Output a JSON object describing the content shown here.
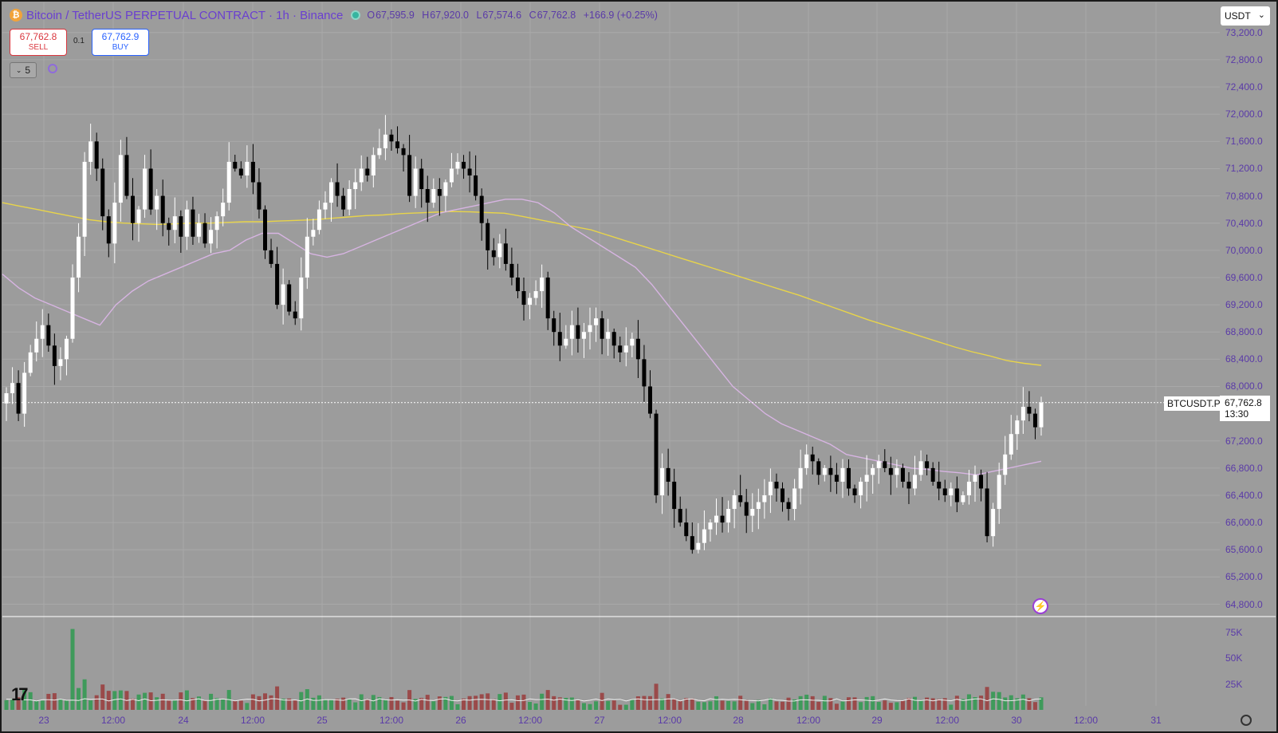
{
  "header": {
    "coin_glyph": "₿",
    "symbol_title": "Bitcoin / TetherUS PERPETUAL CONTRACT · 1h · Binance",
    "ohlc": [
      {
        "label": "O",
        "value": "67,595.9"
      },
      {
        "label": "H",
        "value": "67,920.0"
      },
      {
        "label": "L",
        "value": "67,574.6"
      },
      {
        "label": "C",
        "value": "67,762.8"
      }
    ],
    "change": "+166.9 (+0.25%)"
  },
  "trade": {
    "sell_price": "67,762.8",
    "sell_label": "SELL",
    "spread": "0.1",
    "buy_price": "67,762.9",
    "buy_label": "BUY"
  },
  "indicators_toggle": {
    "count": "5"
  },
  "currency_select": {
    "value": "USDT"
  },
  "price_axis": {
    "labels": [
      "73,200.0",
      "72,800.0",
      "72,400.0",
      "72,000.0",
      "71,600.0",
      "71,200.0",
      "70,800.0",
      "70,400.0",
      "70,000.0",
      "69,600.0",
      "69,200.0",
      "68,800.0",
      "68,400.0",
      "68,000.0",
      "67,200.0",
      "66,800.0",
      "66,400.0",
      "66,000.0",
      "65,600.0",
      "65,200.0",
      "64,800.0"
    ],
    "values": [
      73200,
      72800,
      72400,
      72000,
      71600,
      71200,
      70800,
      70400,
      70000,
      69600,
      69200,
      68800,
      68400,
      68000,
      67200,
      66800,
      66400,
      66000,
      65600,
      65200,
      64800
    ]
  },
  "volume_axis": {
    "labels": [
      "75K",
      "50K",
      "25K"
    ],
    "values": [
      75000,
      50000,
      25000
    ]
  },
  "time_axis": {
    "labels": [
      "23",
      "12:00",
      "24",
      "12:00",
      "25",
      "12:00",
      "26",
      "12:00",
      "27",
      "12:00",
      "28",
      "12:00",
      "29",
      "12:00",
      "30",
      "12:00",
      "31"
    ]
  },
  "last_price": {
    "symbol": "BTCUSDT.P",
    "price": "67,762.8",
    "countdown": "13:30"
  },
  "colors": {
    "up": "#ffffff",
    "down": "#000000",
    "vol_up": "#3f9a5b",
    "vol_down": "#9a4a4a",
    "ma_slow": "#e8d44a",
    "ma_fast": "#d7b4e2"
  },
  "chart_data": {
    "type": "candlestick",
    "interval": "1h",
    "ylim": [
      64600,
      73400
    ],
    "close_series": [
      67900,
      68050,
      67600,
      68200,
      68500,
      68700,
      68900,
      68600,
      68300,
      68400,
      68700,
      69600,
      70200,
      71300,
      71600,
      71200,
      70500,
      70100,
      70700,
      71400,
      70800,
      70400,
      70600,
      71200,
      70600,
      70800,
      70400,
      70300,
      70500,
      70200,
      70600,
      70200,
      70400,
      70100,
      70300,
      70500,
      70700,
      71300,
      71200,
      71100,
      71300,
      71000,
      70600,
      70000,
      69800,
      69200,
      69500,
      69100,
      69000,
      69600,
      70200,
      70300,
      70600,
      70700,
      71000,
      70800,
      70600,
      70900,
      71000,
      71200,
      71100,
      71400,
      71500,
      71700,
      71600,
      71500,
      71400,
      70800,
      71200,
      70900,
      70700,
      70900,
      70800,
      71000,
      71200,
      71300,
      71200,
      71100,
      70800,
      70400,
      70000,
      69900,
      70100,
      69800,
      69600,
      69400,
      69200,
      69300,
      69400,
      69600,
      69000,
      68800,
      68600,
      68700,
      68900,
      68700,
      68800,
      68900,
      69000,
      68700,
      68800,
      68600,
      68500,
      68600,
      68700,
      68400,
      68000,
      67600,
      66400,
      66800,
      66600,
      66200,
      66000,
      65800,
      65600,
      65700,
      65900,
      66000,
      66100,
      66000,
      66200,
      66400,
      66300,
      66100,
      66200,
      66300,
      66400,
      66600,
      66500,
      66300,
      66200,
      66500,
      66800,
      67000,
      66900,
      66700,
      66800,
      66700,
      66600,
      66800,
      66500,
      66400,
      66600,
      66700,
      66800,
      66900,
      66800,
      66700,
      66800,
      66600,
      66500,
      66700,
      66900,
      66800,
      66600,
      66500,
      66400,
      66500,
      66300,
      66400,
      66600,
      66700,
      66500,
      65800,
      66200,
      66700,
      67000,
      67300,
      67500,
      67700,
      67600,
      67400,
      67762.8
    ],
    "ma_slow_series": [
      70700,
      70650,
      70600,
      70550,
      70500,
      70450,
      70420,
      70400,
      70390,
      70380,
      70390,
      70400,
      70400,
      70410,
      70420,
      70420,
      70430,
      70440,
      70450,
      70470,
      70490,
      70510,
      70520,
      70540,
      70550,
      70560,
      70570,
      70565,
      70555,
      70545,
      70500,
      70450,
      70400,
      70350,
      70300,
      70220,
      70140,
      70060,
      69980,
      69900,
      69820,
      69740,
      69660,
      69580,
      69500,
      69420,
      69340,
      69250,
      69160,
      69070,
      68980,
      68900,
      68820,
      68740,
      68660,
      68580,
      68510,
      68450,
      68380,
      68340,
      68310
    ],
    "ma_fast_series": [
      69650,
      69450,
      69300,
      69200,
      69100,
      69000,
      68900,
      69200,
      69400,
      69550,
      69650,
      69750,
      69850,
      69950,
      70000,
      70150,
      70250,
      70250,
      70100,
      69950,
      69900,
      69950,
      70050,
      70150,
      70250,
      70350,
      70450,
      70550,
      70600,
      70650,
      70700,
      70750,
      70750,
      70700,
      70550,
      70350,
      70200,
      70050,
      69900,
      69750,
      69500,
      69200,
      68900,
      68600,
      68300,
      68000,
      67800,
      67600,
      67450,
      67350,
      67250,
      67150,
      67000,
      66950,
      66900,
      66850,
      66800,
      66780,
      66750,
      66730,
      66700,
      66750,
      66800,
      66850,
      66900
    ]
  }
}
